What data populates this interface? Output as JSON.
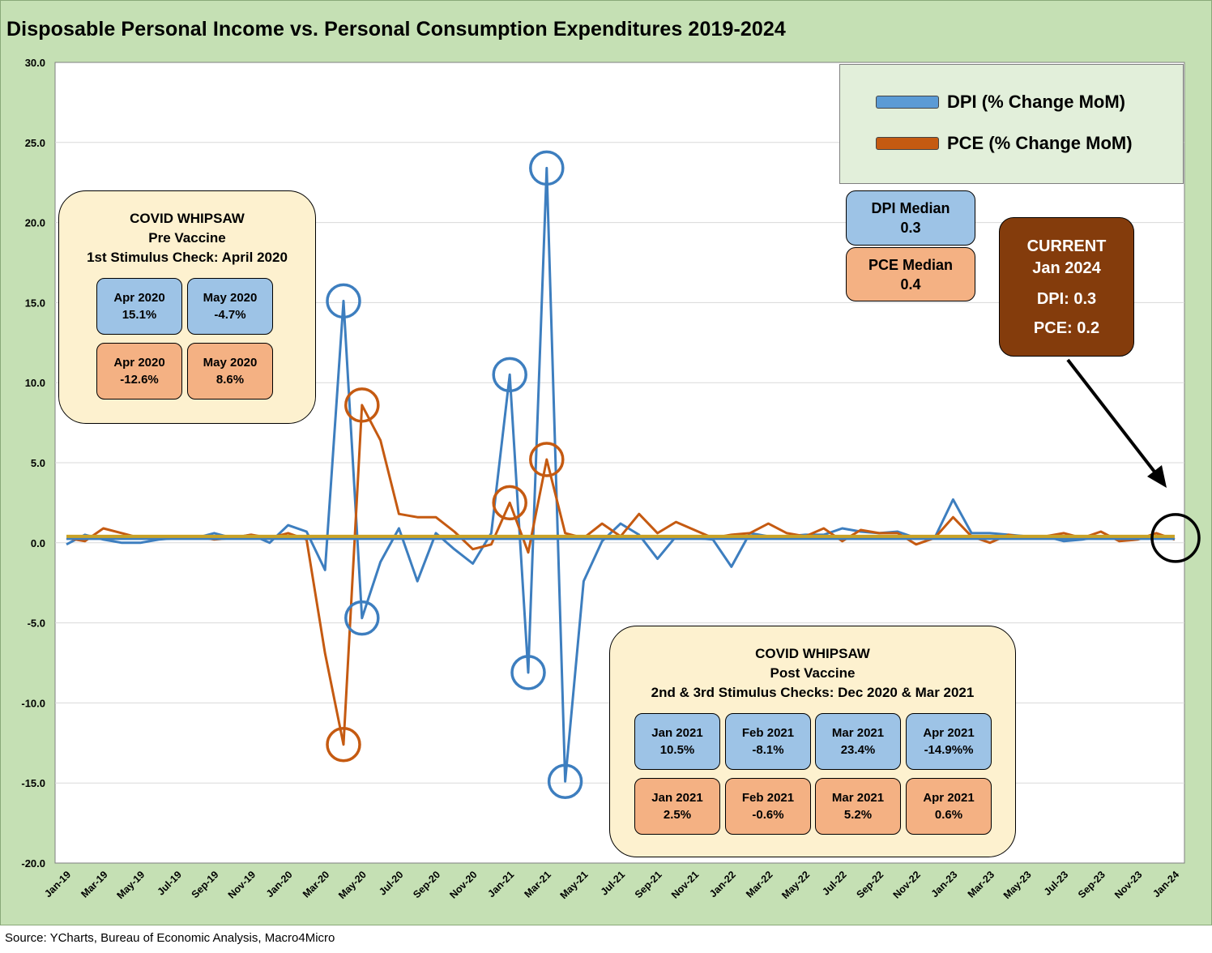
{
  "title": "Disposable Personal Income vs. Personal Consumption Expenditures 2019-2024",
  "source": "Source: YCharts, Bureau of Economic Analysis, Macro4Micro",
  "colors": {
    "dpi": "#3d7ebf",
    "pce": "#c55a11",
    "median_line": "#c9a227",
    "background": "#c5e0b4"
  },
  "legend": {
    "dpi_label": "DPI (% Change MoM)",
    "pce_label": "PCE (% Change MoM)"
  },
  "callout_pre": {
    "line1": "COVID WHIPSAW",
    "line2": "Pre Vaccine",
    "line3": "1st Stimulus Check: April 2020",
    "cells": [
      {
        "kind": "dpi",
        "month": "Apr 2020",
        "value": "15.1%"
      },
      {
        "kind": "dpi",
        "month": "May 2020",
        "value": "-4.7%"
      },
      {
        "kind": "pce",
        "month": "Apr 2020",
        "value": "-12.6%"
      },
      {
        "kind": "pce",
        "month": "May 2020",
        "value": "8.6%"
      }
    ]
  },
  "callout_post": {
    "line1": "COVID WHIPSAW",
    "line2": "Post Vaccine",
    "line3": "2nd & 3rd Stimulus Checks: Dec 2020 & Mar 2021",
    "cells": [
      {
        "kind": "dpi",
        "month": "Jan 2021",
        "value": "10.5%"
      },
      {
        "kind": "dpi",
        "month": "Feb 2021",
        "value": "-8.1%"
      },
      {
        "kind": "dpi",
        "month": "Mar 2021",
        "value": "23.4%"
      },
      {
        "kind": "dpi",
        "month": "Apr 2021",
        "value": "-14.9%%"
      },
      {
        "kind": "pce",
        "month": "Jan 2021",
        "value": "2.5%"
      },
      {
        "kind": "pce",
        "month": "Feb 2021",
        "value": "-0.6%"
      },
      {
        "kind": "pce",
        "month": "Mar 2021",
        "value": "5.2%"
      },
      {
        "kind": "pce",
        "month": "Apr 2021",
        "value": "0.6%"
      }
    ]
  },
  "dpi_median": {
    "label": "DPI Median",
    "value": "0.3"
  },
  "pce_median": {
    "label": "PCE Median",
    "value": "0.4"
  },
  "current": {
    "line1": "CURRENT",
    "line2": "Jan 2024",
    "line3": "DPI: 0.3",
    "line4": "PCE: 0.2"
  },
  "chart_data": {
    "type": "line",
    "title": "Disposable Personal Income vs. Personal Consumption Expenditures 2019-2024",
    "ylim": [
      -20,
      30
    ],
    "y_ticks": [
      "30.0",
      "25.0",
      "20.0",
      "15.0",
      "10.0",
      "5.0",
      "0.0",
      "-5.0",
      "-10.0",
      "-15.0",
      "-20.0"
    ],
    "x_tick_labels": [
      "Jan-19",
      "Mar-19",
      "May-19",
      "Jul-19",
      "Sep-19",
      "Nov-19",
      "Jan-20",
      "Mar-20",
      "May-20",
      "Jul-20",
      "Sep-20",
      "Nov-20",
      "Jan-21",
      "Mar-21",
      "May-21",
      "Jul-21",
      "Sep-21",
      "Nov-21",
      "Jan-22",
      "Mar-22",
      "May-22",
      "Jul-22",
      "Sep-22",
      "Nov-22",
      "Jan-23",
      "Mar-23",
      "May-23",
      "Jul-23",
      "Sep-23",
      "Nov-23",
      "Jan-24"
    ],
    "grid": true,
    "legend_position": "top-right",
    "x": [
      "Jan-19",
      "Feb-19",
      "Mar-19",
      "Apr-19",
      "May-19",
      "Jun-19",
      "Jul-19",
      "Aug-19",
      "Sep-19",
      "Oct-19",
      "Nov-19",
      "Dec-19",
      "Jan-20",
      "Feb-20",
      "Mar-20",
      "Apr-20",
      "May-20",
      "Jun-20",
      "Jul-20",
      "Aug-20",
      "Sep-20",
      "Oct-20",
      "Nov-20",
      "Dec-20",
      "Jan-21",
      "Feb-21",
      "Mar-21",
      "Apr-21",
      "May-21",
      "Jun-21",
      "Jul-21",
      "Aug-21",
      "Sep-21",
      "Oct-21",
      "Nov-21",
      "Dec-21",
      "Jan-22",
      "Feb-22",
      "Mar-22",
      "Apr-22",
      "May-22",
      "Jun-22",
      "Jul-22",
      "Aug-22",
      "Sep-22",
      "Oct-22",
      "Nov-22",
      "Dec-22",
      "Jan-23",
      "Feb-23",
      "Mar-23",
      "Apr-23",
      "May-23",
      "Jun-23",
      "Jul-23",
      "Aug-23",
      "Sep-23",
      "Oct-23",
      "Nov-23",
      "Dec-23",
      "Jan-24"
    ],
    "series": [
      {
        "name": "DPI (% Change MoM)",
        "values": [
          -0.1,
          0.5,
          0.2,
          0.0,
          0.0,
          0.2,
          0.3,
          0.3,
          0.6,
          0.3,
          0.5,
          0.0,
          1.1,
          0.7,
          -1.7,
          15.1,
          -4.7,
          -1.2,
          0.9,
          -2.4,
          0.6,
          -0.4,
          -1.3,
          0.6,
          10.5,
          -8.1,
          23.4,
          -14.9,
          -2.4,
          0.1,
          1.2,
          0.5,
          -1.0,
          0.4,
          0.3,
          0.2,
          -1.5,
          0.6,
          0.4,
          0.4,
          0.5,
          0.5,
          0.9,
          0.7,
          0.6,
          0.7,
          0.3,
          0.3,
          2.7,
          0.6,
          0.6,
          0.5,
          0.4,
          0.4,
          0.1,
          0.2,
          0.4,
          0.3,
          0.3,
          0.3,
          0.3
        ]
      },
      {
        "name": "PCE (% Change MoM)",
        "values": [
          0.3,
          0.1,
          0.9,
          0.6,
          0.3,
          0.3,
          0.4,
          0.4,
          0.2,
          0.3,
          0.5,
          0.3,
          0.6,
          0.2,
          -6.9,
          -12.6,
          8.6,
          6.4,
          1.8,
          1.6,
          1.6,
          0.7,
          -0.4,
          -0.1,
          2.5,
          -0.6,
          5.2,
          0.6,
          0.3,
          1.2,
          0.4,
          1.8,
          0.6,
          1.3,
          0.8,
          0.3,
          0.5,
          0.6,
          1.2,
          0.6,
          0.4,
          0.9,
          0.1,
          0.8,
          0.6,
          0.6,
          -0.1,
          0.3,
          1.6,
          0.4,
          0.0,
          0.5,
          0.3,
          0.4,
          0.6,
          0.3,
          0.7,
          0.1,
          0.2,
          0.6,
          0.2
        ]
      }
    ],
    "median_line_value": 0.35,
    "highlighted_points": [
      {
        "series": "DPI (% Change MoM)",
        "x": "Apr-20",
        "y": 15.1
      },
      {
        "series": "DPI (% Change MoM)",
        "x": "May-20",
        "y": -4.7
      },
      {
        "series": "DPI (% Change MoM)",
        "x": "Jan-21",
        "y": 10.5
      },
      {
        "series": "DPI (% Change MoM)",
        "x": "Feb-21",
        "y": -8.1
      },
      {
        "series": "DPI (% Change MoM)",
        "x": "Mar-21",
        "y": 23.4
      },
      {
        "series": "DPI (% Change MoM)",
        "x": "Apr-21",
        "y": -14.9
      },
      {
        "series": "PCE (% Change MoM)",
        "x": "Apr-20",
        "y": -12.6
      },
      {
        "series": "PCE (% Change MoM)",
        "x": "May-20",
        "y": 8.6
      },
      {
        "series": "PCE (% Change MoM)",
        "x": "Jan-21",
        "y": 2.5
      },
      {
        "series": "PCE (% Change MoM)",
        "x": "Mar-21",
        "y": 5.2
      },
      {
        "series": "Current",
        "x": "Jan-24",
        "y": 0.3
      }
    ]
  }
}
